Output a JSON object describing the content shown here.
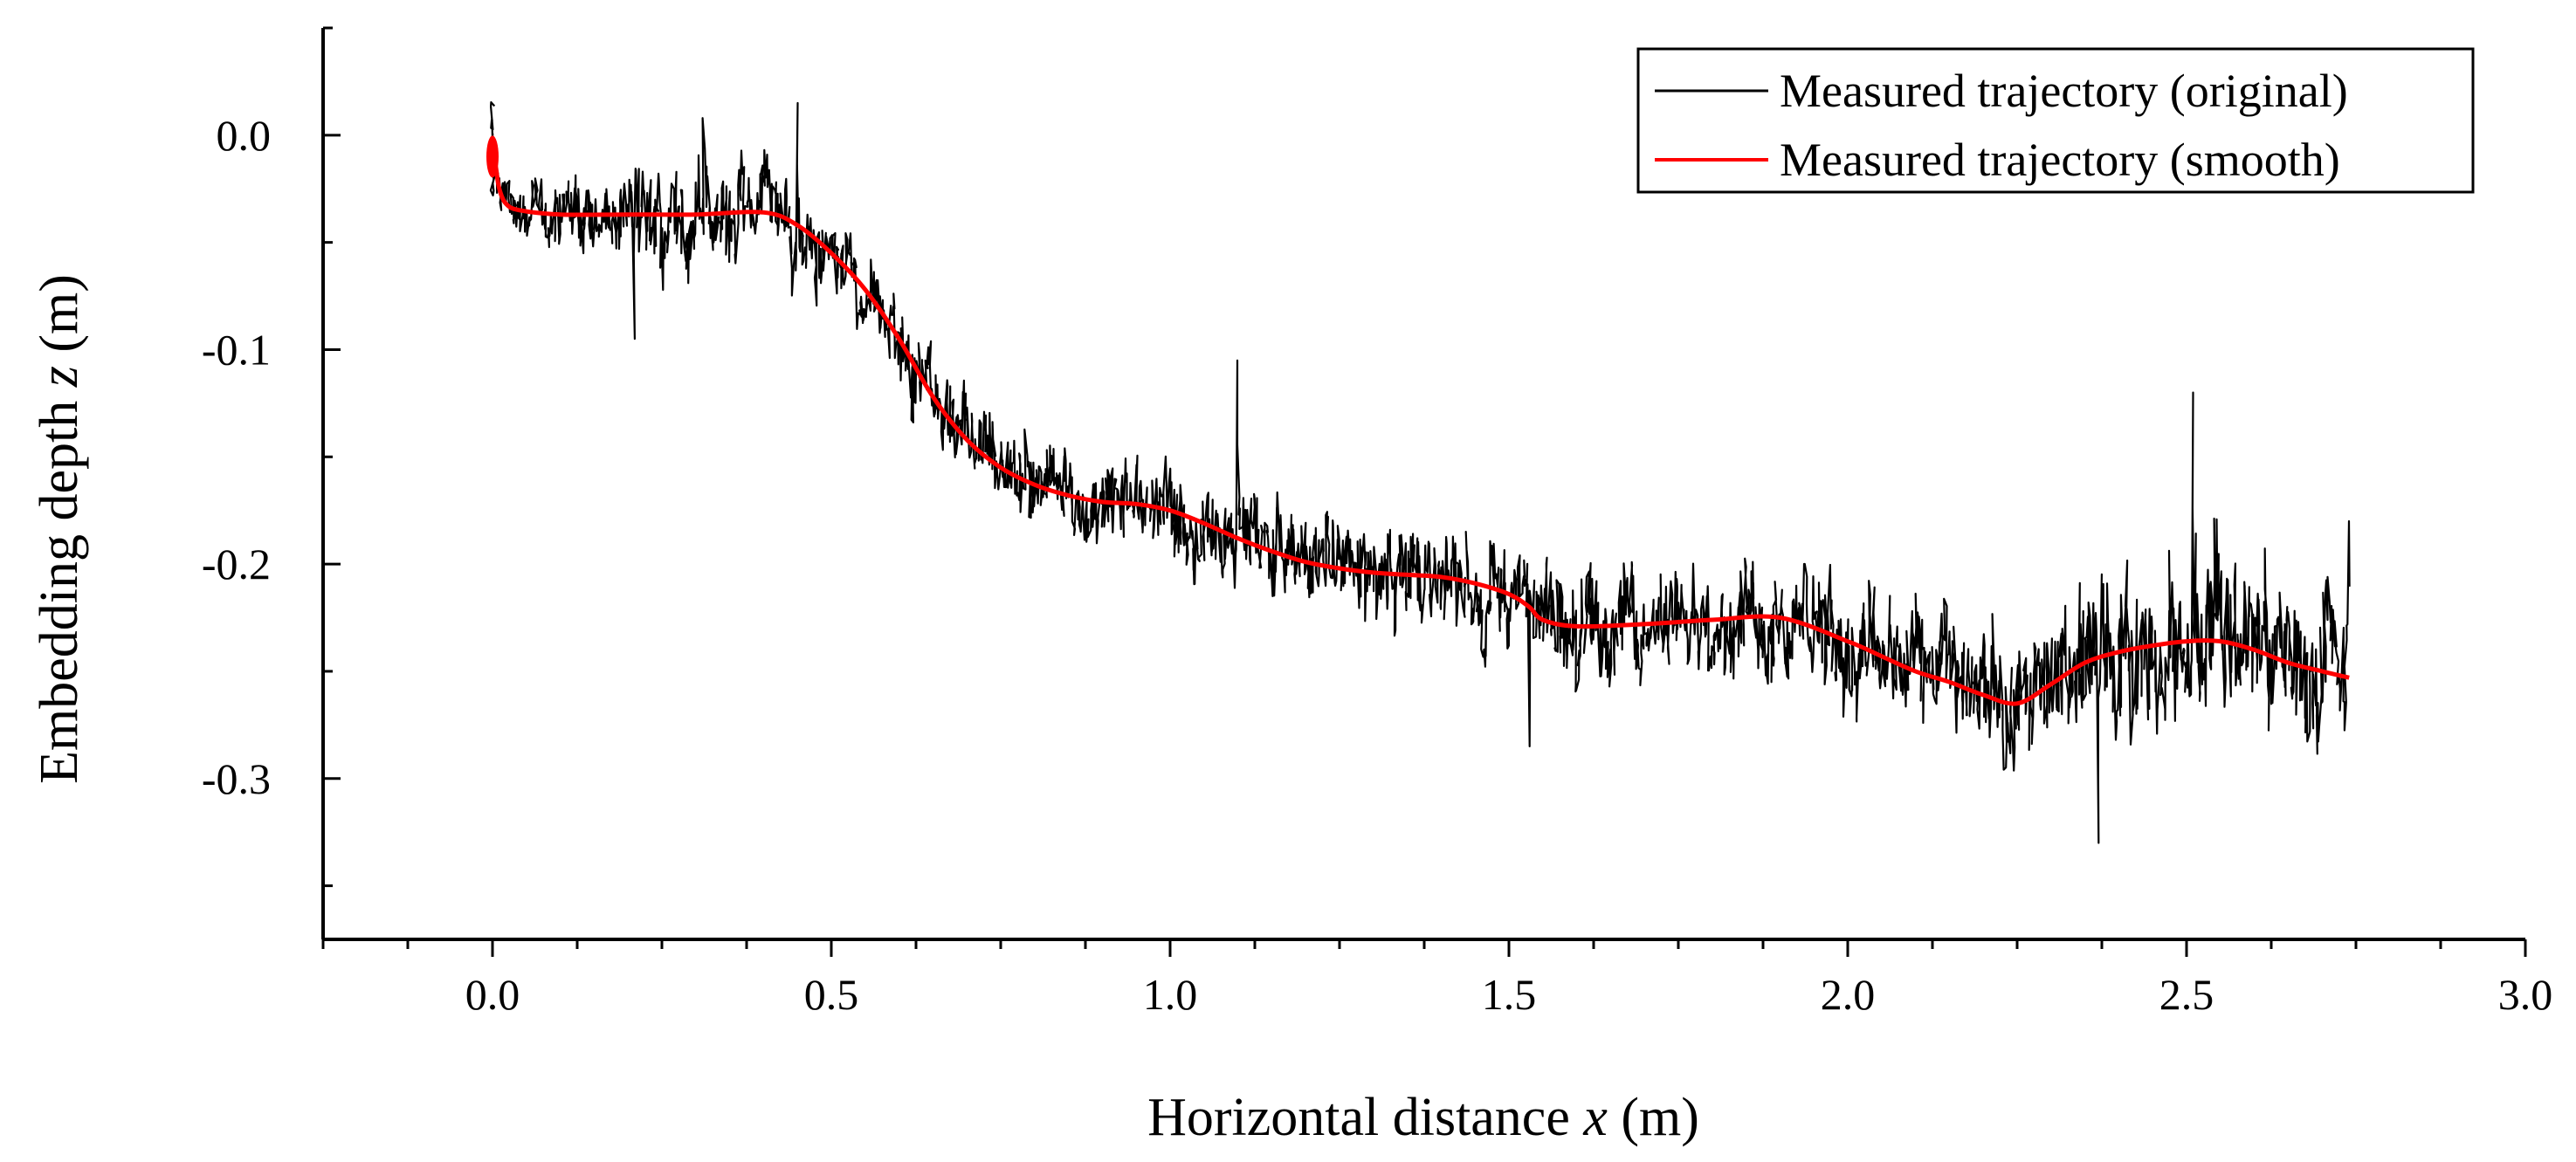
{
  "chart_data": {
    "type": "line",
    "xlabel_pre": "Horizontal distance ",
    "xlabel_var": "x",
    "xlabel_unit": " (m)",
    "ylabel_pre": "Embedding depth ",
    "ylabel_var": "z",
    "ylabel_unit": " (m)",
    "xlim": [
      -0.25,
      3.0
    ],
    "ylim": [
      -0.375,
      0.05
    ],
    "xticks": [
      0.0,
      0.5,
      1.0,
      1.5,
      2.0,
      2.5,
      3.0
    ],
    "xtick_labels": [
      "0.0",
      "0.5",
      "1.0",
      "1.5",
      "2.0",
      "2.5",
      "3.0"
    ],
    "yticks": [
      0.0,
      -0.1,
      -0.2,
      -0.3
    ],
    "ytick_labels": [
      "0.0",
      "-0.1",
      "-0.2",
      "-0.3"
    ],
    "legend_position": "top-right",
    "series": [
      {
        "name": "Measured trajectory (original)",
        "color": "#000000",
        "noise_amplitude": [
          [
            0.0,
            0.012
          ],
          [
            0.1,
            0.02
          ],
          [
            0.25,
            0.03
          ],
          [
            0.45,
            0.025
          ],
          [
            0.7,
            0.022
          ],
          [
            1.0,
            0.025
          ],
          [
            1.25,
            0.025
          ],
          [
            1.5,
            0.028
          ],
          [
            1.8,
            0.03
          ],
          [
            2.1,
            0.033
          ],
          [
            2.35,
            0.04
          ],
          [
            2.5,
            0.045
          ],
          [
            2.74,
            0.04
          ]
        ],
        "spikes": [
          [
            0.21,
            -0.095
          ],
          [
            0.31,
            0.008
          ],
          [
            0.45,
            0.015
          ],
          [
            1.1,
            -0.105
          ],
          [
            2.51,
            -0.12
          ],
          [
            2.37,
            -0.33
          ],
          [
            1.53,
            -0.285
          ],
          [
            2.74,
            -0.18
          ]
        ]
      },
      {
        "name": "Measured trajectory (smooth)",
        "color": "#ff0000",
        "x": [
          0.0,
          0.005,
          0.01,
          0.02,
          0.04,
          0.1,
          0.2,
          0.3,
          0.4,
          0.45,
          0.5,
          0.55,
          0.6,
          0.65,
          0.7,
          0.75,
          0.8,
          0.85,
          0.9,
          0.95,
          1.0,
          1.05,
          1.1,
          1.15,
          1.2,
          1.25,
          1.3,
          1.35,
          1.4,
          1.45,
          1.5,
          1.53,
          1.55,
          1.6,
          1.7,
          1.8,
          1.9,
          2.0,
          2.05,
          2.1,
          2.15,
          2.2,
          2.25,
          2.3,
          2.35,
          2.4,
          2.45,
          2.5,
          2.55,
          2.6,
          2.65,
          2.7,
          2.74
        ],
        "y": [
          -0.005,
          -0.015,
          -0.025,
          -0.032,
          -0.035,
          -0.037,
          -0.037,
          -0.037,
          -0.036,
          -0.042,
          -0.055,
          -0.072,
          -0.095,
          -0.122,
          -0.142,
          -0.155,
          -0.163,
          -0.168,
          -0.171,
          -0.172,
          -0.175,
          -0.181,
          -0.188,
          -0.194,
          -0.199,
          -0.202,
          -0.204,
          -0.205,
          -0.206,
          -0.209,
          -0.214,
          -0.22,
          -0.226,
          -0.229,
          -0.228,
          -0.226,
          -0.225,
          -0.236,
          -0.243,
          -0.25,
          -0.255,
          -0.261,
          -0.265,
          -0.256,
          -0.246,
          -0.241,
          -0.238,
          -0.236,
          -0.236,
          -0.24,
          -0.246,
          -0.25,
          -0.253
        ]
      }
    ]
  }
}
